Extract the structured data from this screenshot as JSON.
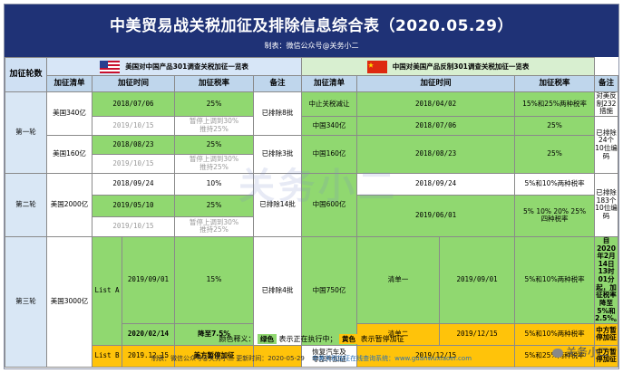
{
  "header": {
    "title": "中美贸易战关税加征及排除信息综合表（2020.05.29）",
    "maker": "制表：微信公众号@关务小二"
  },
  "sections": {
    "us_title": "美国对中国产品301调查关税加征一览表",
    "cn_title": "中国对美国产品反制301调查关税加征一览表"
  },
  "columns": {
    "round": "加征轮数",
    "us_list": "加征清单",
    "us_time": "加征时间",
    "us_rate": "加征税率",
    "us_note": "备注",
    "cn_list": "加征清单",
    "cn_time": "加征时间",
    "cn_rate": "加征税率",
    "cn_note": "备注"
  },
  "rounds": {
    "r1": "第一轮",
    "r2": "第二轮",
    "r3": "第三轮"
  },
  "us": {
    "list_340": "美国340亿",
    "list_160": "美国160亿",
    "list_2000": "美国2000亿",
    "list_3000": "美国3000亿",
    "list_a": "List A",
    "list_b": "List B",
    "t_0706": "2018/07/06",
    "t_1015a": "2019/10/15",
    "t_0823": "2018/08/23",
    "t_1015b": "2019/10/15",
    "t_0924": "2018/09/24",
    "t_0510": "2019/05/10",
    "t_1015c": "2019/10/15",
    "t_0901": "2019/09/01",
    "t_0214": "2020/02/14",
    "t_1215": "2019.12.15",
    "rate_25a": "25%",
    "rate_pause_a": "暂停上调到30%\n推持25%",
    "rate_25b": "25%",
    "rate_pause_b": "暂停上调到30%\n推持25%",
    "rate_10": "10%",
    "rate_25c": "25%",
    "rate_pause_c": "暂停上调到30%\n推持25%",
    "rate_15": "15%",
    "rate_75": "降至7.5%",
    "rate_b": "美方暂停加征",
    "note_r1a": "已排除8批",
    "note_r1b": "已排除3批",
    "note_r2": "已排除14批",
    "note_r3": "已排除4批"
  },
  "cn": {
    "list_stop": "中止关税减让",
    "list_340": "中国340亿",
    "list_160": "中国160亿",
    "list_600": "中国600亿",
    "list_750": "中国750亿",
    "list_one": "清单一",
    "list_two": "清单二",
    "list_auto": "恢复汽车及\n零部件加征",
    "t_0402": "2018/04/02",
    "t_0706": "2018/07/06",
    "t_0823": "2018/08/23",
    "t_0924": "2018/09/24",
    "t_0601": "2019/06/01",
    "t_0901": "2019/09/01",
    "t_1215a": "2019/12/15",
    "t_1215b": "2019/12/15",
    "rate_stop": "15%和25%两种税率",
    "rate_25a": "25%",
    "rate_25b": "25%",
    "rate_5_10": "5%和10%两种税率",
    "rate_four": "5% 10% 20% 25%\n四种税率",
    "rate_one": "5%和10%两种税率",
    "rate_two": "5%和10%两种税率",
    "rate_auto": "5%和25%两种税率",
    "note_232": "对美反制232措施",
    "note_r1": "已排除24个10位编码",
    "note_r2": "已排除183个10位编码",
    "note_r3": "自2020年2月14日13时01分起，加征税率降至5%和2.5%。",
    "note_pause1": "中方暂停加征",
    "note_pause2": "中方暂停加征"
  },
  "legend": {
    "label": "颜色释义：",
    "green": "绿色",
    "green_text": "表示正在执行中；",
    "yellow": "黄色",
    "yellow_text": "表示暂停加征"
  },
  "footer": {
    "text": "制表：微信公众号@关务小二    更新时间：2020-05-29",
    "site": "中美关税加征在线查询系统：www.guanwuxiaoer.com"
  },
  "watermark": {
    "center": "关务小二",
    "corner": "关务小二"
  },
  "colors": {
    "title_bg": "#1f3276",
    "green": "#90d870",
    "yellow": "#ffc30a"
  }
}
